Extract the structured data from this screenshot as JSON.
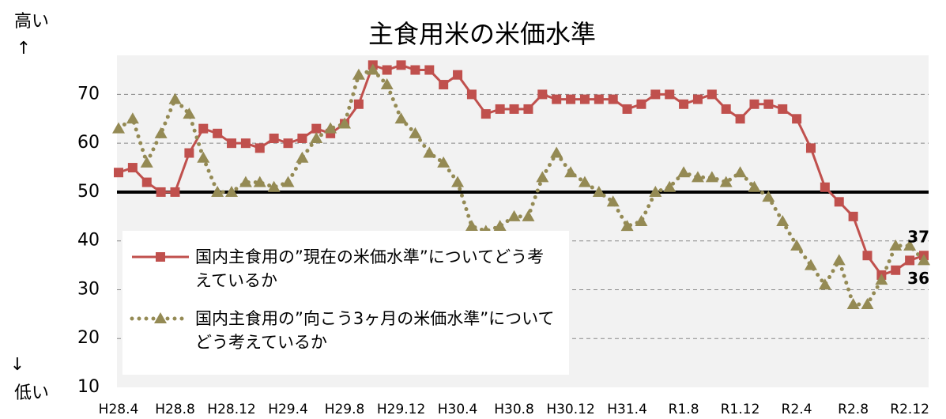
{
  "chart_data": {
    "type": "line",
    "title": "主食用米の米価水準",
    "high_label": "高い",
    "low_label": "低い",
    "categories": [
      "H28.4",
      null,
      null,
      null,
      "H28.8",
      null,
      null,
      null,
      "H28.12",
      null,
      null,
      null,
      "H29.4",
      null,
      null,
      null,
      "H29.8",
      null,
      null,
      null,
      "H29.12",
      null,
      null,
      null,
      "H30.4",
      null,
      null,
      null,
      "H30.8",
      null,
      null,
      null,
      "H30.12",
      null,
      null,
      null,
      "H31.4",
      null,
      null,
      null,
      "R1.8",
      null,
      null,
      null,
      "R1.12",
      null,
      null,
      null,
      "R2.4",
      null,
      null,
      null,
      "R2.8",
      null,
      null,
      null,
      "R2.12",
      null
    ],
    "series": [
      {
        "name": "国内主食用の”現在の米価水準”についてどう考えているか",
        "color": "#c0504d",
        "marker": "square",
        "dash": false,
        "values": [
          54,
          55,
          52,
          50,
          50,
          58,
          63,
          62,
          60,
          60,
          59,
          61,
          60,
          61,
          63,
          62,
          64,
          68,
          76,
          75,
          76,
          75,
          75,
          72,
          74,
          70,
          66,
          67,
          67,
          67,
          70,
          69,
          69,
          69,
          69,
          69,
          67,
          68,
          70,
          70,
          68,
          69,
          70,
          67,
          65,
          68,
          68,
          67,
          65,
          59,
          51,
          48,
          45,
          37,
          33,
          34,
          36,
          37
        ]
      },
      {
        "name": "国内主食用の”向こう3ヶ月の米価水準”についてどう考えているか",
        "color": "#948a54",
        "marker": "triangle",
        "dash": true,
        "values": [
          63,
          65,
          56,
          62,
          69,
          66,
          57,
          50,
          50,
          52,
          52,
          51,
          52,
          57,
          61,
          63,
          64,
          74,
          75,
          72,
          65,
          62,
          58,
          56,
          52,
          43,
          42,
          43,
          45,
          45,
          53,
          58,
          54,
          52,
          50,
          48,
          43,
          44,
          50,
          51,
          54,
          53,
          53,
          52,
          54,
          51,
          49,
          44,
          39,
          35,
          31,
          36,
          27,
          27,
          32,
          39,
          39,
          36
        ]
      }
    ],
    "ylim": [
      10,
      78
    ],
    "yticks": [
      10,
      20,
      30,
      40,
      50,
      60,
      70
    ],
    "grid": true,
    "reference_line": 50
  }
}
